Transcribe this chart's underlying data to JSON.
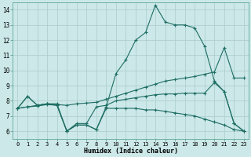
{
  "xlabel": "Humidex (Indice chaleur)",
  "bg_color": "#cce8e8",
  "line_color": "#1e6e64",
  "grid_color": "#aacccc",
  "xlim": [
    -0.5,
    23.5
  ],
  "ylim": [
    5.5,
    14.5
  ],
  "xticks": [
    0,
    1,
    2,
    3,
    4,
    5,
    6,
    7,
    8,
    9,
    10,
    11,
    12,
    13,
    14,
    15,
    16,
    17,
    18,
    19,
    20,
    21,
    22,
    23
  ],
  "yticks": [
    6,
    7,
    8,
    9,
    10,
    11,
    12,
    13,
    14
  ],
  "line1_y": [
    7.5,
    8.3,
    7.7,
    7.8,
    7.8,
    6.0,
    6.4,
    6.4,
    6.1,
    7.6,
    9.8,
    10.7,
    12.0,
    12.5,
    14.3,
    13.2,
    13.0,
    13.0,
    12.8,
    11.6,
    9.3,
    8.6,
    6.5,
    6.0
  ],
  "line2_y": [
    7.5,
    7.6,
    7.7,
    7.8,
    7.75,
    7.7,
    7.8,
    7.85,
    7.9,
    8.1,
    8.3,
    8.5,
    8.7,
    8.9,
    9.1,
    9.3,
    9.4,
    9.5,
    9.6,
    9.75,
    9.9,
    11.5,
    9.5,
    9.5
  ],
  "line3_y": [
    7.5,
    8.3,
    7.7,
    7.8,
    7.7,
    6.0,
    6.5,
    6.5,
    7.6,
    7.7,
    8.0,
    8.1,
    8.2,
    8.3,
    8.4,
    8.45,
    8.45,
    8.5,
    8.5,
    8.5,
    9.2,
    8.6,
    6.5,
    6.0
  ],
  "line4_y": [
    7.5,
    7.6,
    7.65,
    7.75,
    7.7,
    6.0,
    6.4,
    6.4,
    6.1,
    7.5,
    7.5,
    7.5,
    7.5,
    7.4,
    7.4,
    7.3,
    7.2,
    7.1,
    7.0,
    6.8,
    6.6,
    6.4,
    6.1,
    6.0
  ]
}
